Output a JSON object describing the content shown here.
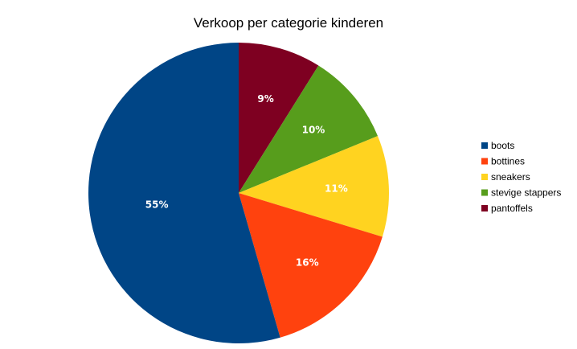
{
  "chart_data": {
    "type": "pie",
    "title": "Verkoop per categorie kinderen",
    "categories": [
      "pantoffels",
      "stevige stappers",
      "sneakers",
      "bottines",
      "boots"
    ],
    "values": [
      9,
      10,
      11,
      16,
      55
    ],
    "value_labels": [
      "9%",
      "10%",
      "11%",
      "16%",
      "55%"
    ],
    "colors": [
      "#7e0021",
      "#579d1c",
      "#ffd320",
      "#ff420e",
      "#004586"
    ],
    "legend": {
      "position": "right",
      "entries": [
        "boots",
        "bottines",
        "sneakers",
        "stevige stappers",
        "pantoffels"
      ],
      "colors": [
        "#004586",
        "#ff420e",
        "#ffd320",
        "#579d1c",
        "#7e0021"
      ]
    }
  }
}
